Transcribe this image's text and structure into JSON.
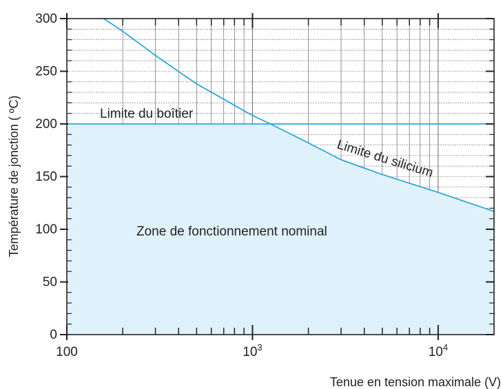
{
  "chart_data": {
    "type": "line",
    "xscale": "log",
    "xlim": [
      100,
      20000
    ],
    "ylim": [
      0,
      300
    ],
    "xlabel": "Tenue en tension maximale (V)",
    "ylabel": "Température de jonction ( ºC)",
    "x_ticks": [
      {
        "value": 100,
        "base": "100",
        "exp": ""
      },
      {
        "value": 1000,
        "base": "10",
        "exp": "3"
      },
      {
        "value": 10000,
        "base": "10",
        "exp": "4"
      }
    ],
    "y_ticks": [
      0,
      50,
      100,
      150,
      200,
      250,
      300
    ],
    "grid": true,
    "series": [
      {
        "name": "Limite du silicium",
        "x": [
          158,
          200,
          300,
          500,
          1000,
          1250,
          2000,
          3000,
          5000,
          10000,
          20000
        ],
        "y": [
          300,
          288,
          265,
          238,
          208,
          200,
          182,
          166,
          152,
          135,
          117
        ]
      },
      {
        "name": "Limite du boîtier",
        "x": [
          100,
          20000
        ],
        "y": [
          200,
          200
        ]
      }
    ],
    "zone": {
      "label": "Zone de fonctionnement nominal",
      "x": [
        100,
        1250,
        2000,
        3000,
        5000,
        10000,
        20000
      ],
      "y": [
        200,
        200,
        182,
        166,
        152,
        135,
        117
      ]
    },
    "annotations": {
      "boitier": "Limite du boîtier",
      "silicium": "Limite du silicium",
      "zone": "Zone de fonctionnement nominal"
    },
    "colors": {
      "curve": "#2aa9db",
      "fill": "#dff2fb",
      "grid": "#666666",
      "axis": "#222222"
    }
  }
}
